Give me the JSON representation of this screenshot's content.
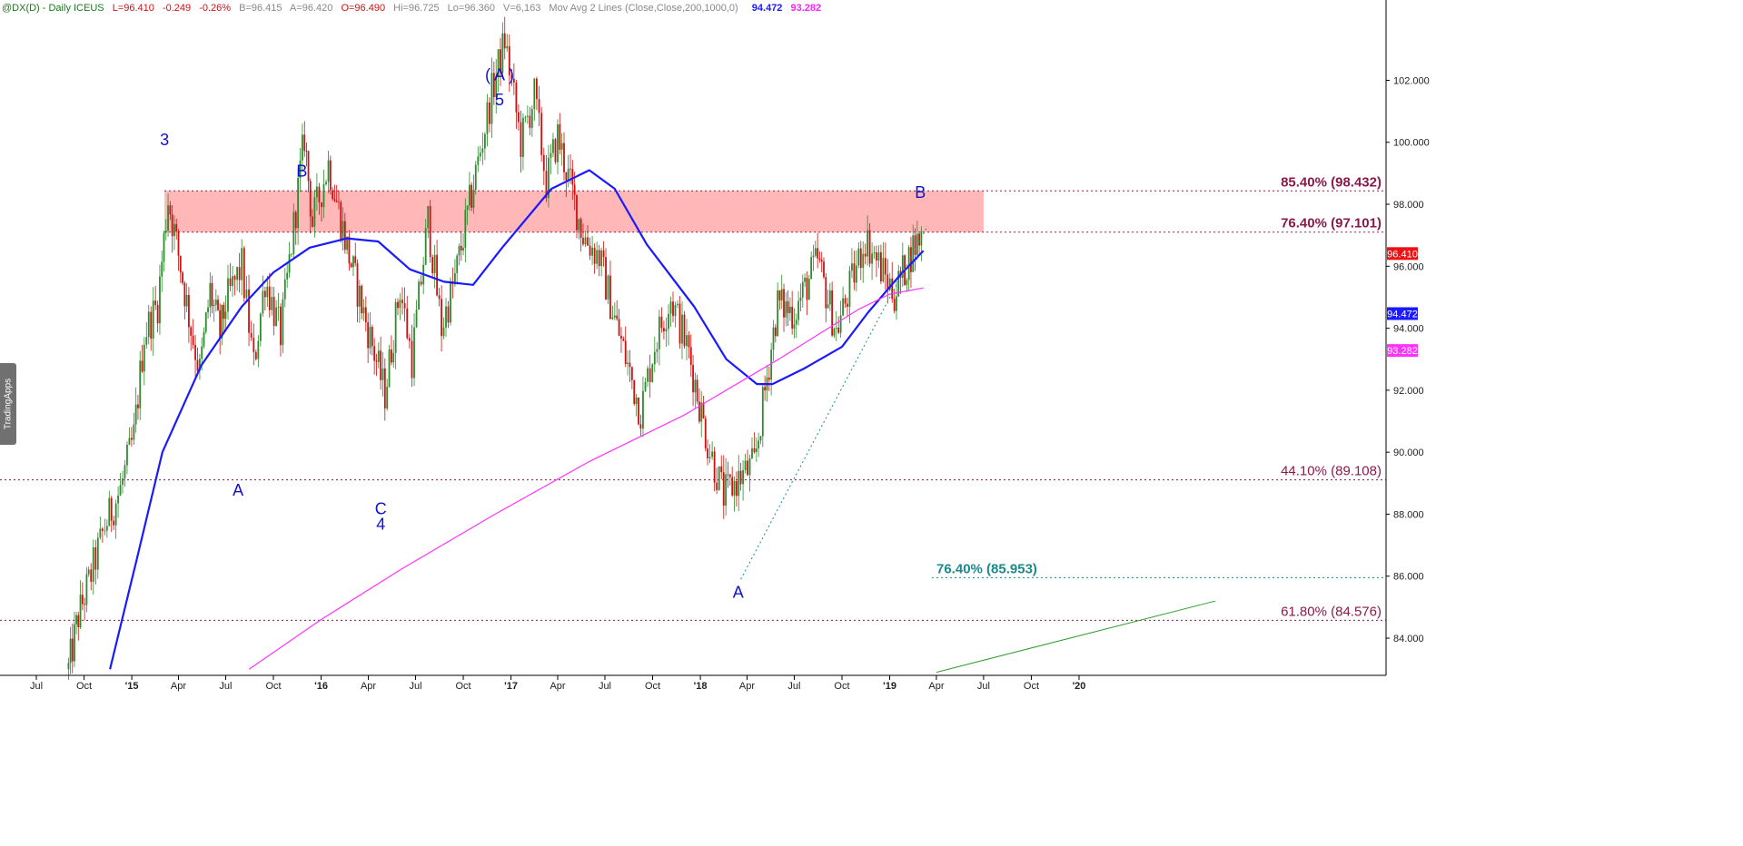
{
  "header": {
    "symbol": "@DX(D) - Daily  ICEUS",
    "last": "L=96.410",
    "change": "-0.249",
    "change_pct": "-0.26%",
    "bid": "B=96.415",
    "ask": "A=96.420",
    "open": "O=96.490",
    "high": "Hi=96.725",
    "low": "Lo=96.360",
    "volume": "V=6,163",
    "indicator": "Mov Avg 2 Lines (Close,Close,200,1000,0)",
    "ma1_value": "94.472",
    "ma2_value": "93.282"
  },
  "side_tab": "TradingApps",
  "colors": {
    "ma_fast": "#1a1aff",
    "ma_slow": "#ff33ff",
    "resistance_zone": "#ffb3b3",
    "fib_maroon": "#8b1a4a",
    "fib_teal": "#1a8a8a",
    "trendline": "#2e9e2e",
    "candle_up": "#2e8b2e",
    "candle_down": "#cc1111",
    "last_price_badge": "#ee1111"
  },
  "chart_data": {
    "type": "candlestick",
    "title": "",
    "xlabel": "",
    "ylabel": "",
    "ylim": [
      82.8,
      103.8
    ],
    "grid": false,
    "y_ticks": [
      "84.000",
      "86.000",
      "88.000",
      "90.000",
      "92.000",
      "94.000",
      "96.000",
      "98.000",
      "100.000",
      "102.000"
    ],
    "x_ticks": [
      "Jul",
      "Oct",
      "'15",
      "Apr",
      "Jul",
      "Oct",
      "'16",
      "Apr",
      "Jul",
      "Oct",
      "'17",
      "Apr",
      "Jul",
      "Oct",
      "'18",
      "Apr",
      "Jul",
      "Oct",
      "'19",
      "Apr",
      "Jul",
      "Oct",
      "'20"
    ],
    "price_path": [
      [
        "2014-09-01",
        83.0
      ],
      [
        "2014-09-20",
        84.7
      ],
      [
        "2014-10-10",
        85.8
      ],
      [
        "2014-11-10",
        87.6
      ],
      [
        "2014-12-10",
        88.8
      ],
      [
        "2015-01-05",
        90.5
      ],
      [
        "2015-01-25",
        93.8
      ],
      [
        "2015-02-20",
        94.8
      ],
      [
        "2015-03-12",
        98.2
      ],
      [
        "2015-04-05",
        96.0
      ],
      [
        "2015-04-25",
        94.0
      ],
      [
        "2015-05-12",
        92.6
      ],
      [
        "2015-06-01",
        95.2
      ],
      [
        "2015-06-20",
        93.8
      ],
      [
        "2015-07-01",
        94.8
      ],
      [
        "2015-08-01",
        96.0
      ],
      [
        "2015-08-24",
        92.8
      ],
      [
        "2015-09-15",
        95.6
      ],
      [
        "2015-10-15",
        93.8
      ],
      [
        "2015-11-30",
        100.2
      ],
      [
        "2015-12-15",
        97.4
      ],
      [
        "2016-01-15",
        99.3
      ],
      [
        "2016-02-20",
        96.6
      ],
      [
        "2016-03-15",
        95.0
      ],
      [
        "2016-05-03",
        91.9
      ],
      [
        "2016-06-01",
        95.3
      ],
      [
        "2016-06-24",
        93.0
      ],
      [
        "2016-07-25",
        97.5
      ],
      [
        "2016-08-20",
        94.0
      ],
      [
        "2016-09-15",
        95.6
      ],
      [
        "2016-10-25",
        99.0
      ],
      [
        "2016-11-25",
        101.6
      ],
      [
        "2016-12-20",
        103.3
      ],
      [
        "2017-01-20",
        100.0
      ],
      [
        "2017-02-15",
        101.5
      ],
      [
        "2017-03-10",
        98.7
      ],
      [
        "2017-04-01",
        100.2
      ],
      [
        "2017-05-20",
        97.0
      ],
      [
        "2017-06-20",
        96.3
      ],
      [
        "2017-07-20",
        94.3
      ],
      [
        "2017-09-08",
        91.3
      ],
      [
        "2017-10-05",
        93.5
      ],
      [
        "2017-11-05",
        95.0
      ],
      [
        "2017-12-10",
        93.2
      ],
      [
        "2018-01-15",
        90.3
      ],
      [
        "2018-02-15",
        88.6
      ],
      [
        "2018-03-20",
        89.2
      ],
      [
        "2018-04-15",
        89.6
      ],
      [
        "2018-05-30",
        94.8
      ],
      [
        "2018-07-01",
        94.5
      ],
      [
        "2018-08-15",
        96.2
      ],
      [
        "2018-09-20",
        93.9
      ],
      [
        "2018-11-15",
        96.9
      ],
      [
        "2019-01-10",
        95.1
      ],
      [
        "2019-02-15",
        96.6
      ],
      [
        "2019-03-07",
        97.1
      ]
    ],
    "moving_averages": [
      {
        "name": "94.472",
        "period": 200,
        "points": [
          [
            "2014-11-20",
            83.0
          ],
          [
            "2015-01-10",
            86.5
          ],
          [
            "2015-03-01",
            90.0
          ],
          [
            "2015-05-15",
            92.8
          ],
          [
            "2015-08-01",
            94.7
          ],
          [
            "2015-10-01",
            95.8
          ],
          [
            "2015-12-10",
            96.6
          ],
          [
            "2016-02-20",
            96.9
          ],
          [
            "2016-04-20",
            96.8
          ],
          [
            "2016-06-20",
            95.9
          ],
          [
            "2016-08-25",
            95.5
          ],
          [
            "2016-10-20",
            95.4
          ],
          [
            "2016-12-15",
            96.6
          ],
          [
            "2017-03-20",
            98.5
          ],
          [
            "2017-06-01",
            99.1
          ],
          [
            "2017-07-20",
            98.5
          ],
          [
            "2017-09-20",
            96.7
          ],
          [
            "2017-12-20",
            94.7
          ],
          [
            "2018-02-20",
            93.0
          ],
          [
            "2018-04-20",
            92.2
          ],
          [
            "2018-05-20",
            92.2
          ],
          [
            "2018-07-20",
            92.7
          ],
          [
            "2018-10-01",
            93.4
          ],
          [
            "2018-11-20",
            94.5
          ],
          [
            "2019-01-20",
            95.7
          ],
          [
            "2019-03-07",
            96.5
          ]
        ]
      },
      {
        "name": "93.282",
        "period": 1000,
        "points": [
          [
            "2015-08-15",
            83.0
          ],
          [
            "2016-01-01",
            84.6
          ],
          [
            "2016-06-01",
            86.2
          ],
          [
            "2016-12-01",
            88.0
          ],
          [
            "2017-06-01",
            89.7
          ],
          [
            "2017-12-01",
            91.2
          ],
          [
            "2018-06-01",
            93.0
          ],
          [
            "2018-11-01",
            94.6
          ],
          [
            "2019-01-01",
            95.1
          ],
          [
            "2019-03-07",
            95.3
          ]
        ]
      }
    ],
    "resistance_zone": {
      "from": "2015-03-05",
      "to": "2019-07-01",
      "low": 97.101,
      "high": 98.432
    },
    "fib_levels": [
      {
        "label": "85.40% (98.432)",
        "value": 98.432,
        "color": "maroon",
        "bold": true
      },
      {
        "label": "76.40% (97.101)",
        "value": 97.101,
        "color": "maroon",
        "bold": true
      },
      {
        "label": "44.10% (89.108)",
        "value": 89.108,
        "color": "maroon",
        "bold": false
      },
      {
        "label": "76.40% (85.953)",
        "value": 85.953,
        "color": "teal",
        "bold": true
      },
      {
        "label": "61.80% (84.576)",
        "value": 84.576,
        "color": "maroon",
        "bold": false
      }
    ],
    "wave_labels": [
      {
        "text": "3",
        "date": "2015-03-05",
        "price": 99.9
      },
      {
        "text": "B",
        "date": "2015-11-25",
        "price": 98.9
      },
      {
        "text": "A",
        "date": "2015-07-25",
        "price": 88.6
      },
      {
        "text": "C",
        "date": "2016-04-25",
        "price": 88.0
      },
      {
        "text": "4",
        "date": "2016-04-25",
        "price": 87.5
      },
      {
        "text": "( A )",
        "date": "2016-12-10",
        "price": 102.0
      },
      {
        "text": "5",
        "date": "2016-12-10",
        "price": 101.2
      },
      {
        "text": "A",
        "date": "2018-03-15",
        "price": 85.3
      },
      {
        "text": "B",
        "date": "2019-03-01",
        "price": 98.2
      }
    ],
    "trendlines": [
      {
        "style": "dotted",
        "color": "teal",
        "from": [
          "2018-03-20",
          85.9
        ],
        "to": [
          "2019-03-15",
          97.3
        ]
      },
      {
        "style": "solid",
        "color": "green",
        "from": [
          "2019-04-01",
          82.9
        ],
        "to": [
          "2020-09-20",
          85.2
        ]
      }
    ],
    "last_price": "96.410",
    "ma_badges": [
      "94.472",
      "93.282"
    ]
  }
}
